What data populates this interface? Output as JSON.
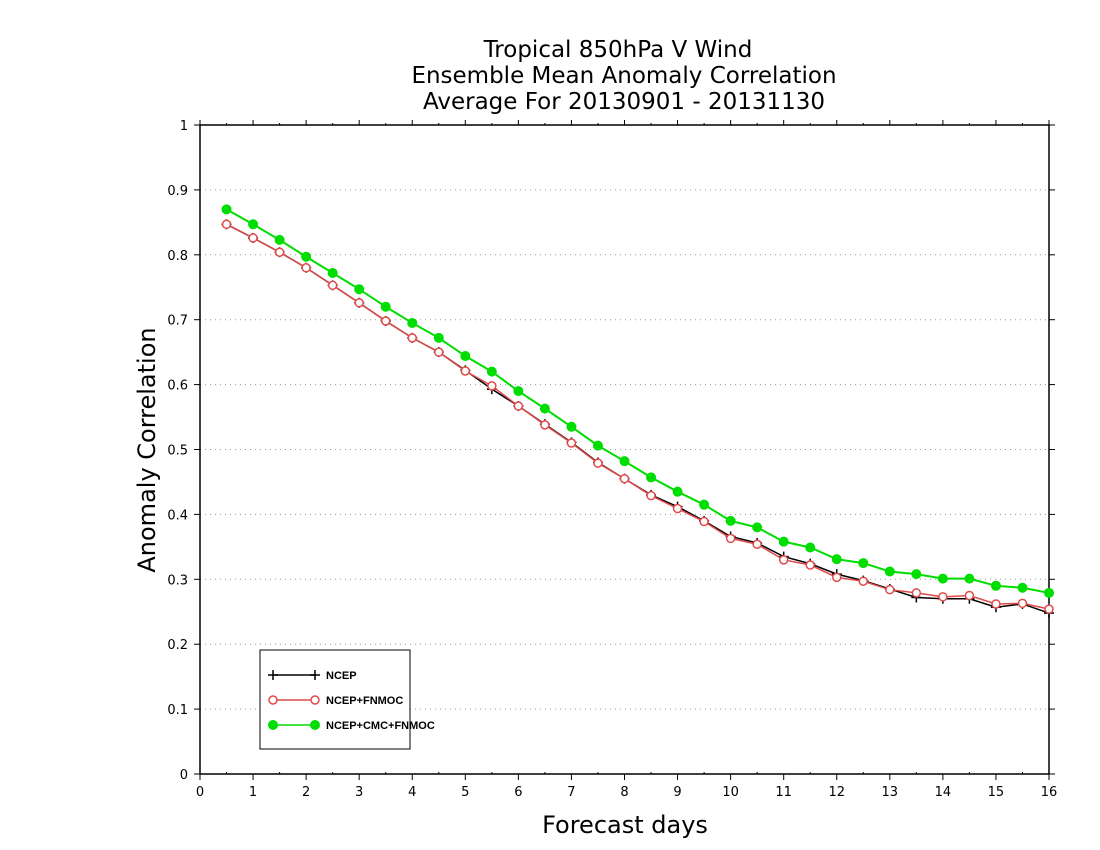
{
  "chart_data": {
    "type": "line",
    "title": [
      "Tropical 850hPa V Wind",
      "Ensemble Mean Anomaly Correlation",
      "Average For 20130901 - 20131130"
    ],
    "xlabel": "Forecast days",
    "ylabel": "Anomaly Correlation",
    "xlim": [
      0,
      16
    ],
    "ylim": [
      0,
      1
    ],
    "xticks": [
      0,
      1,
      2,
      3,
      4,
      5,
      6,
      7,
      8,
      9,
      10,
      11,
      12,
      13,
      14,
      15,
      16
    ],
    "yticks": [
      0,
      0.1,
      0.2,
      0.3,
      0.4,
      0.5,
      0.6,
      0.7,
      0.8,
      0.9,
      1
    ],
    "ytick_labels": [
      "0",
      "0.1",
      "0.2",
      "0.3",
      "0.4",
      "0.5",
      "0.6",
      "0.7",
      "0.8",
      "0.9",
      "1"
    ],
    "grid": "horizontal dotted",
    "legend_position": "bottom-left",
    "x": [
      0.5,
      1,
      1.5,
      2,
      2.5,
      3,
      3.5,
      4,
      4.5,
      5,
      5.5,
      6,
      6.5,
      7,
      7.5,
      8,
      8.5,
      9,
      9.5,
      10,
      10.5,
      11,
      11.5,
      12,
      12.5,
      13,
      13.5,
      14,
      14.5,
      15,
      15.5,
      16
    ],
    "series": [
      {
        "name": "NCEP",
        "color": "#000000",
        "marker": "plus",
        "values": [
          0.847,
          0.826,
          0.804,
          0.78,
          0.753,
          0.726,
          0.698,
          0.672,
          0.65,
          0.622,
          0.593,
          0.567,
          0.539,
          0.511,
          0.48,
          0.455,
          0.43,
          0.412,
          0.39,
          0.366,
          0.356,
          0.335,
          0.324,
          0.308,
          0.298,
          0.285,
          0.272,
          0.27,
          0.27,
          0.257,
          0.262,
          0.248
        ]
      },
      {
        "name": "NCEP+FNMOC",
        "color": "#e04a4a",
        "marker": "open-circle",
        "values": [
          0.847,
          0.826,
          0.804,
          0.78,
          0.753,
          0.726,
          0.698,
          0.672,
          0.65,
          0.621,
          0.598,
          0.567,
          0.538,
          0.51,
          0.479,
          0.455,
          0.429,
          0.409,
          0.389,
          0.363,
          0.354,
          0.33,
          0.322,
          0.303,
          0.297,
          0.284,
          0.279,
          0.273,
          0.275,
          0.262,
          0.263,
          0.254
        ]
      },
      {
        "name": "NCEP+CMC+FNMOC",
        "color": "#00dd00",
        "marker": "filled-circle",
        "values": [
          0.87,
          0.847,
          0.823,
          0.797,
          0.772,
          0.747,
          0.72,
          0.695,
          0.672,
          0.644,
          0.62,
          0.59,
          0.563,
          0.535,
          0.506,
          0.482,
          0.457,
          0.435,
          0.415,
          0.39,
          0.38,
          0.358,
          0.349,
          0.331,
          0.325,
          0.312,
          0.308,
          0.301,
          0.301,
          0.29,
          0.287,
          0.279
        ]
      }
    ]
  }
}
